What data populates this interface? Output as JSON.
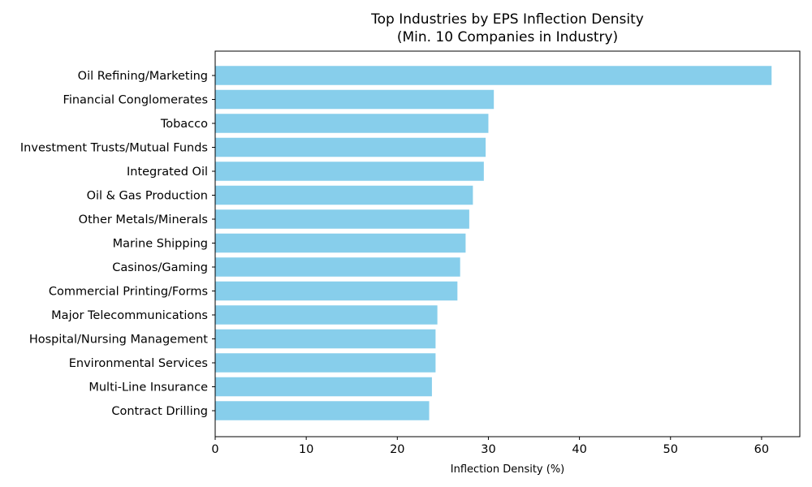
{
  "chart_data": {
    "type": "bar",
    "orientation": "horizontal",
    "title": "Top Industries by EPS Inflection Density",
    "subtitle": "(Min. 10 Companies in Industry)",
    "xlabel": "Inflection Density (%)",
    "ylabel": "",
    "xlim": [
      0,
      64.2
    ],
    "xticks": [
      0,
      10,
      20,
      30,
      40,
      50,
      60
    ],
    "bar_color": "#87ceeb",
    "grid": false,
    "categories": [
      "Oil Refining/Marketing",
      "Financial Conglomerates",
      "Tobacco",
      "Investment Trusts/Mutual Funds",
      "Integrated Oil",
      "Oil & Gas Production",
      "Other Metals/Minerals",
      "Marine Shipping",
      "Casinos/Gaming",
      "Commercial Printing/Forms",
      "Major Telecommunications",
      "Hospital/Nursing Management",
      "Environmental Services",
      "Multi-Line Insurance",
      "Contract Drilling"
    ],
    "values": [
      61.1,
      30.6,
      30.0,
      29.7,
      29.5,
      28.3,
      27.9,
      27.5,
      26.9,
      26.6,
      24.4,
      24.2,
      24.2,
      23.8,
      23.5
    ]
  }
}
